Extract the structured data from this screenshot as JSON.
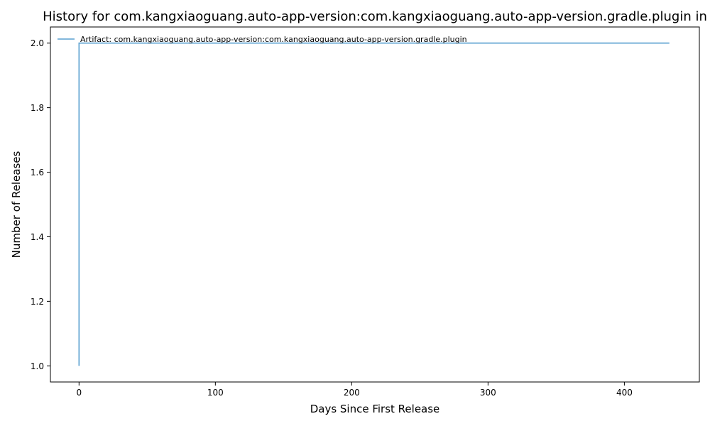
{
  "chart_data": {
    "type": "line",
    "title": "History for com.kangxiaoguang.auto-app-version:com.kangxiaoguang.auto-app-version.gradle.plugin in",
    "xlabel": "Days Since First Release",
    "ylabel": "Number of Releases",
    "xlim": [
      -21,
      455
    ],
    "ylim": [
      0.95,
      2.05
    ],
    "xticks": [
      0,
      100,
      200,
      300,
      400
    ],
    "yticks": [
      1.0,
      1.2,
      1.4,
      1.6,
      1.8,
      2.0
    ],
    "xtick_labels": [
      "0",
      "100",
      "200",
      "300",
      "400"
    ],
    "ytick_labels": [
      "1.0",
      "1.2",
      "1.4",
      "1.6",
      "1.8",
      "2.0"
    ],
    "legend_position": "top-left",
    "grid": false,
    "series": [
      {
        "name": "Artifact: com.kangxiaoguang.auto-app-version:com.kangxiaoguang.auto-app-version.gradle.plugin",
        "color": "#5aa0d0",
        "step": "post",
        "x": [
          0,
          0,
          433
        ],
        "y": [
          1,
          2,
          2
        ]
      }
    ]
  }
}
